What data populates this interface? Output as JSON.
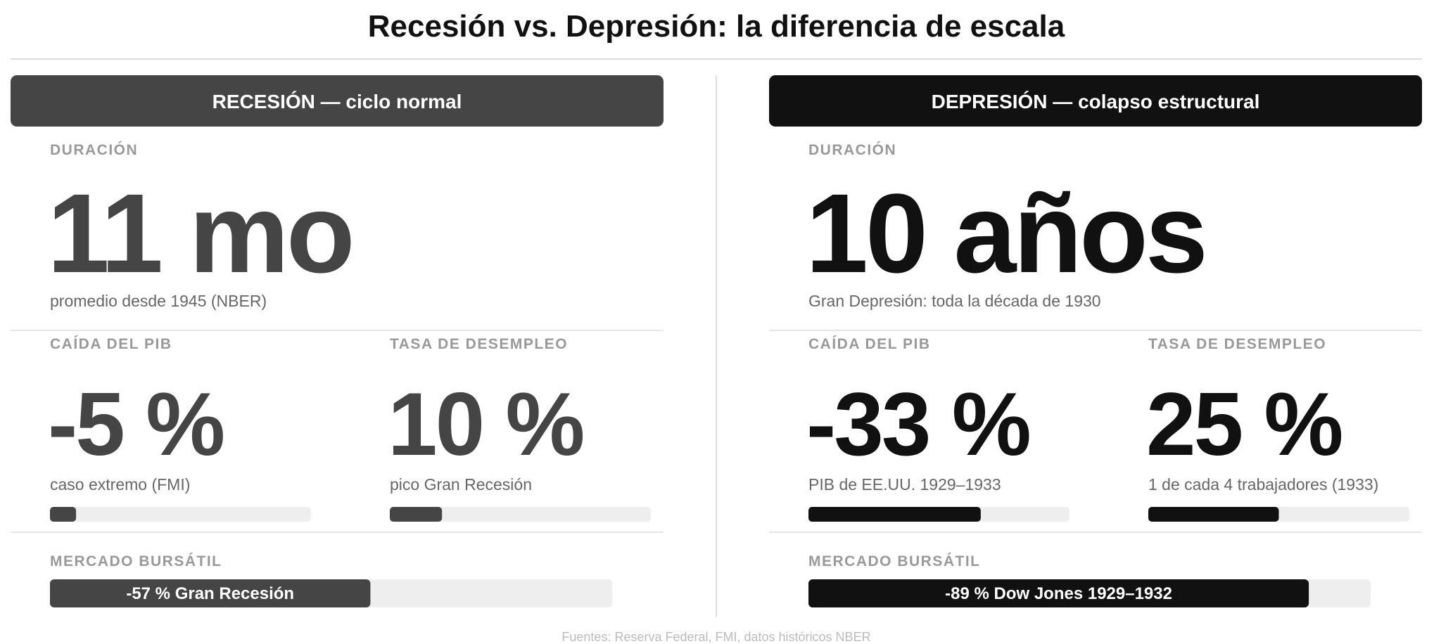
{
  "title": "Recesión vs. Depresión: la diferencia de escala",
  "panels": [
    {
      "header": "RECESIÓN — ciclo normal",
      "color": "#454545",
      "duration": {
        "label": "DURACIÓN",
        "value_label": "11 mo",
        "note": "promedio desde 1945 (NBER)"
      },
      "metrics": [
        {
          "label": "CAÍDA DEL PIB",
          "value": -5,
          "value_label": "-5 %",
          "note": "caso extremo (FMI)",
          "xlim": [
            0,
            -50
          ]
        },
        {
          "label": "TASA DE DESEMPLEO",
          "value": 10,
          "value_label": "10 %",
          "note": "pico Gran Recesión",
          "xlim": [
            0,
            50
          ]
        }
      ],
      "market": {
        "label": "MERCADO BURSÁTIL",
        "value": -57,
        "value_label": "-57 % Gran Recesión",
        "xlim": [
          0,
          -100
        ]
      }
    },
    {
      "header": "DEPRESIÓN — colapso estructural",
      "color": "#111111",
      "duration": {
        "label": "DURACIÓN",
        "value_label": "10 años",
        "note": "Gran Depresión: toda la década de 1930"
      },
      "metrics": [
        {
          "label": "CAÍDA DEL PIB",
          "value": -33,
          "value_label": "-33 %",
          "note": "PIB de EE.UU. 1929–1933",
          "xlim": [
            0,
            -50
          ]
        },
        {
          "label": "TASA DE DESEMPLEO",
          "value": 25,
          "value_label": "25 %",
          "note": "1 de cada 4 trabajadores (1933)",
          "xlim": [
            0,
            50
          ]
        }
      ],
      "market": {
        "label": "MERCADO BURSÁTIL",
        "value": -89,
        "value_label": "-89 % Dow Jones 1929–1932",
        "xlim": [
          0,
          -100
        ]
      }
    }
  ],
  "source": "Fuentes: Reserva Federal, FMI, datos históricos NBER"
}
